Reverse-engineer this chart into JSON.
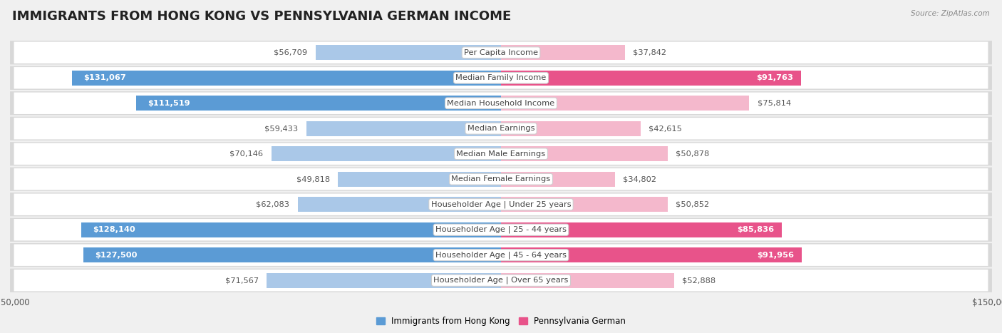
{
  "title": "IMMIGRANTS FROM HONG KONG VS PENNSYLVANIA GERMAN INCOME",
  "source": "Source: ZipAtlas.com",
  "categories": [
    "Per Capita Income",
    "Median Family Income",
    "Median Household Income",
    "Median Earnings",
    "Median Male Earnings",
    "Median Female Earnings",
    "Householder Age | Under 25 years",
    "Householder Age | 25 - 44 years",
    "Householder Age | 45 - 64 years",
    "Householder Age | Over 65 years"
  ],
  "hk_values": [
    56709,
    131067,
    111519,
    59433,
    70146,
    49818,
    62083,
    128140,
    127500,
    71567
  ],
  "pa_values": [
    37842,
    91763,
    75814,
    42615,
    50878,
    34802,
    50852,
    85836,
    91956,
    52888
  ],
  "hk_labels": [
    "$56,709",
    "$131,067",
    "$111,519",
    "$59,433",
    "$70,146",
    "$49,818",
    "$62,083",
    "$128,140",
    "$127,500",
    "$71,567"
  ],
  "pa_labels": [
    "$37,842",
    "$91,763",
    "$75,814",
    "$42,615",
    "$50,878",
    "$34,802",
    "$50,852",
    "$85,836",
    "$91,956",
    "$52,888"
  ],
  "hk_color_light": "#aac8e8",
  "hk_color_dark": "#5b9bd5",
  "pa_color_light": "#f4b8cc",
  "pa_color_dark": "#e8538a",
  "hk_threshold": 100000,
  "pa_threshold": 80000,
  "max_value": 150000,
  "bar_height": 0.58,
  "background_color": "#f0f0f0",
  "row_outer_color": "#d8d8d8",
  "row_inner_color": "#ffffff",
  "legend_hk": "Immigrants from Hong Kong",
  "legend_pa": "Pennsylvania German",
  "title_fontsize": 13,
  "label_fontsize": 8.2,
  "category_fontsize": 8.2,
  "axis_label_fontsize": 8.5
}
